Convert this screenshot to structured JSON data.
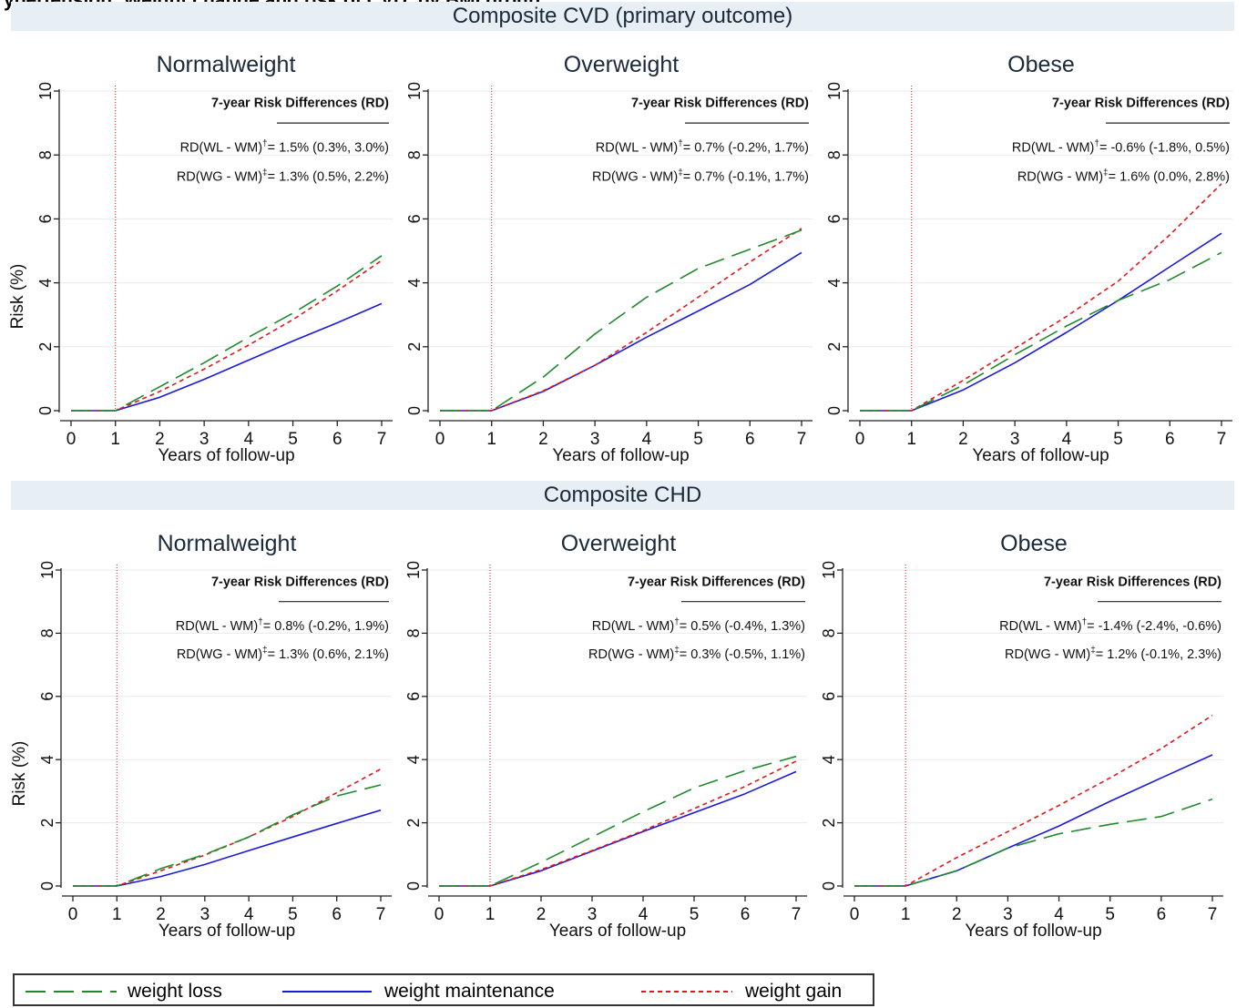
{
  "header_fragment": "ypertension: Weight change and risk of CVD, by BMI group",
  "colors": {
    "weight_loss": "#1f8a2c",
    "weight_maintenance": "#1a1adb",
    "weight_gain": "#e0161b",
    "banner": "#e8eff4"
  },
  "legend": {
    "weight_loss": "weight loss",
    "weight_maintenance": "weight maintenance",
    "weight_gain": "weight gain"
  },
  "chart_data": [
    {
      "type": "line",
      "row_title": "Composite CVD (primary outcome)",
      "title": "Normalweight",
      "xlabel": "Years of follow-up",
      "ylabel": "Risk (%)",
      "x": [
        0,
        1,
        2,
        3,
        4,
        5,
        6,
        7
      ],
      "xlim": [
        0,
        7
      ],
      "ylim": [
        0,
        10
      ],
      "yticks": [
        0,
        2,
        4,
        6,
        8,
        10
      ],
      "grid": "horizontal",
      "vline_x": 1,
      "annotation_header": "7-year Risk Differences (RD)",
      "rd_wl_label": "RD(WL - WM)",
      "rd_wl_mark": "†",
      "rd_wl_value": "= 1.5% (0.3%, 3.0%)",
      "rd_wg_label": "RD(WG - WM)",
      "rd_wg_mark": "‡",
      "rd_wg_value": "= 1.3% (0.5%, 2.2%)",
      "series": [
        {
          "name": "weight loss",
          "values": [
            0,
            0,
            0.75,
            1.5,
            2.3,
            3.05,
            3.9,
            4.85
          ]
        },
        {
          "name": "weight maintenance",
          "values": [
            0,
            0,
            0.42,
            0.98,
            1.58,
            2.18,
            2.75,
            3.35
          ]
        },
        {
          "name": "weight gain",
          "values": [
            0,
            0,
            0.6,
            1.3,
            2.05,
            2.85,
            3.75,
            4.7
          ]
        }
      ]
    },
    {
      "type": "line",
      "title": "Overweight",
      "xlabel": "Years of follow-up",
      "x": [
        0,
        1,
        2,
        3,
        4,
        5,
        6,
        7
      ],
      "xlim": [
        0,
        7
      ],
      "ylim": [
        0,
        10
      ],
      "yticks": [
        0,
        2,
        4,
        6,
        8,
        10
      ],
      "grid": "horizontal",
      "vline_x": 1,
      "annotation_header": "7-year Risk Differences (RD)",
      "rd_wl_label": "RD(WL - WM)",
      "rd_wl_mark": "†",
      "rd_wl_value": "= 0.7% (-0.2%, 1.7%)",
      "rd_wg_label": "RD(WG - WM)",
      "rd_wg_mark": "‡",
      "rd_wg_value": "= 0.7% (-0.1%, 1.7%)",
      "series": [
        {
          "name": "weight loss",
          "values": [
            0,
            0,
            1.05,
            2.4,
            3.55,
            4.45,
            5.05,
            5.65
          ]
        },
        {
          "name": "weight maintenance",
          "values": [
            0,
            0,
            0.6,
            1.42,
            2.3,
            3.12,
            3.95,
            4.95
          ]
        },
        {
          "name": "weight gain",
          "values": [
            0,
            0,
            0.62,
            1.42,
            2.45,
            3.55,
            4.65,
            5.7
          ]
        }
      ]
    },
    {
      "type": "line",
      "title": "Obese",
      "xlabel": "Years of follow-up",
      "x": [
        0,
        1,
        2,
        3,
        4,
        5,
        6,
        7
      ],
      "xlim": [
        0,
        7
      ],
      "ylim": [
        0,
        10
      ],
      "yticks": [
        0,
        2,
        4,
        6,
        8,
        10
      ],
      "grid": "horizontal",
      "vline_x": 1,
      "annotation_header": "7-year Risk Differences (RD)",
      "rd_wl_label": "RD(WL - WM)",
      "rd_wl_mark": "†",
      "rd_wl_value": "= -0.6% (-1.8%, 0.5%)",
      "rd_wg_label": "RD(WG - WM)",
      "rd_wg_mark": "‡",
      "rd_wg_value": "= 1.6% (0.0%, 2.8%)",
      "series": [
        {
          "name": "weight loss",
          "values": [
            0,
            0,
            0.8,
            1.75,
            2.65,
            3.45,
            4.1,
            4.95
          ]
        },
        {
          "name": "weight maintenance",
          "values": [
            0,
            0,
            0.65,
            1.5,
            2.45,
            3.45,
            4.5,
            5.55
          ]
        },
        {
          "name": "weight gain",
          "values": [
            0,
            0,
            0.95,
            1.95,
            2.95,
            4.05,
            5.5,
            7.1
          ]
        }
      ]
    },
    {
      "type": "line",
      "row_title": "Composite CHD",
      "title": "Normalweight",
      "xlabel": "Years of follow-up",
      "ylabel": "Risk (%)",
      "x": [
        0,
        1,
        2,
        3,
        4,
        5,
        6,
        7
      ],
      "xlim": [
        0,
        7
      ],
      "ylim": [
        0,
        10
      ],
      "yticks": [
        0,
        2,
        4,
        6,
        8,
        10
      ],
      "grid": "horizontal",
      "vline_x": 1,
      "annotation_header": "7-year Risk Differences (RD)",
      "rd_wl_label": "RD(WL - WM)",
      "rd_wl_mark": "†",
      "rd_wl_value": "= 0.8% (-0.2%, 1.9%)",
      "rd_wg_label": "RD(WG - WM)",
      "rd_wg_mark": "‡",
      "rd_wg_value": "= 1.3% (0.6%, 2.1%)",
      "series": [
        {
          "name": "weight loss",
          "values": [
            0,
            0,
            0.55,
            1.0,
            1.55,
            2.25,
            2.85,
            3.2
          ]
        },
        {
          "name": "weight maintenance",
          "values": [
            0,
            0,
            0.3,
            0.68,
            1.12,
            1.55,
            1.98,
            2.4
          ]
        },
        {
          "name": "weight gain",
          "values": [
            0,
            0,
            0.48,
            0.98,
            1.55,
            2.2,
            2.95,
            3.7
          ]
        }
      ]
    },
    {
      "type": "line",
      "title": "Overweight",
      "xlabel": "Years of follow-up",
      "x": [
        0,
        1,
        2,
        3,
        4,
        5,
        6,
        7
      ],
      "xlim": [
        0,
        7
      ],
      "ylim": [
        0,
        10
      ],
      "yticks": [
        0,
        2,
        4,
        6,
        8,
        10
      ],
      "grid": "horizontal",
      "vline_x": 1,
      "annotation_header": "7-year Risk Differences (RD)",
      "rd_wl_label": "RD(WL - WM)",
      "rd_wl_mark": "†",
      "rd_wl_value": "= 0.5% (-0.4%, 1.3%)",
      "rd_wg_label": "RD(WG - WM)",
      "rd_wg_mark": "‡",
      "rd_wg_value": "= 0.3% (-0.5%, 1.1%)",
      "series": [
        {
          "name": "weight loss",
          "values": [
            0,
            0,
            0.75,
            1.55,
            2.35,
            3.1,
            3.65,
            4.1
          ]
        },
        {
          "name": "weight maintenance",
          "values": [
            0,
            0,
            0.48,
            1.1,
            1.72,
            2.32,
            2.92,
            3.62
          ]
        },
        {
          "name": "weight gain",
          "values": [
            0,
            0,
            0.52,
            1.12,
            1.75,
            2.45,
            3.15,
            3.95
          ]
        }
      ]
    },
    {
      "type": "line",
      "title": "Obese",
      "xlabel": "Years of follow-up",
      "x": [
        0,
        1,
        2,
        3,
        4,
        5,
        6,
        7
      ],
      "xlim": [
        0,
        7
      ],
      "ylim": [
        0,
        10
      ],
      "yticks": [
        0,
        2,
        4,
        6,
        8,
        10
      ],
      "grid": "horizontal",
      "vline_x": 1,
      "annotation_header": "7-year Risk Differences (RD)",
      "rd_wl_label": "RD(WL - WM)",
      "rd_wl_mark": "†",
      "rd_wl_value": "= -1.4% (-2.4%, -0.6%)",
      "rd_wg_label": "RD(WG - WM)",
      "rd_wg_mark": "‡",
      "rd_wg_value": "= 1.2% (-0.1%, 2.3%)",
      "series": [
        {
          "name": "weight loss",
          "values": [
            0,
            0,
            0.48,
            1.2,
            1.65,
            1.95,
            2.2,
            2.75
          ]
        },
        {
          "name": "weight maintenance",
          "values": [
            0,
            0,
            0.48,
            1.2,
            1.9,
            2.68,
            3.42,
            4.15
          ]
        },
        {
          "name": "weight gain",
          "values": [
            0,
            0,
            0.9,
            1.72,
            2.55,
            3.42,
            4.35,
            5.4
          ]
        }
      ]
    }
  ]
}
